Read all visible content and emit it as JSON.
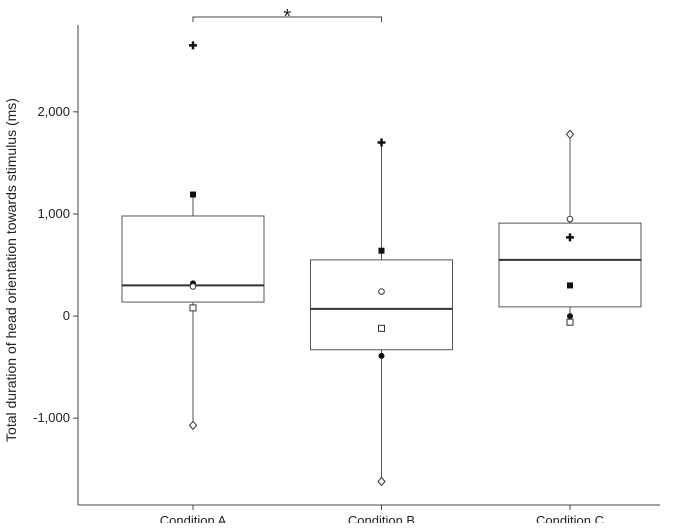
{
  "chart_data": {
    "type": "box",
    "y_label": "Total duration of head orientation towards stimulus (ms)",
    "categories": [
      "Condition A",
      "Condition B",
      "Condition C"
    ],
    "boxes": [
      {
        "whislo": -1070,
        "q1": 137,
        "med": 300,
        "q3": 980,
        "whishi": 1190
      },
      {
        "whislo": -1620,
        "q1": -330,
        "med": 70,
        "q3": 550,
        "whishi": 1700
      },
      {
        "whislo": -60,
        "q1": 90,
        "med": 550,
        "q3": 910,
        "whishi": 1780
      }
    ],
    "points": [
      {
        "marker": "plus",
        "values": [
          2650,
          1700,
          770
        ]
      },
      {
        "marker": "filled-square",
        "values": [
          1190,
          640,
          300
        ]
      },
      {
        "marker": "filled-circle",
        "values": [
          320,
          -390,
          0
        ]
      },
      {
        "marker": "open-circle",
        "values": [
          290,
          240,
          950
        ]
      },
      {
        "marker": "open-square",
        "values": [
          80,
          -120,
          -60
        ]
      },
      {
        "marker": "open-diamond",
        "values": [
          -1070,
          -1620,
          1780
        ]
      }
    ],
    "ylim": [
      -1850,
      2850
    ],
    "yticks": [
      {
        "value": -1000,
        "label": "-1,000"
      },
      0,
      {
        "value": 1000,
        "label": "1,000"
      },
      {
        "value": 2000,
        "label": "2,000"
      }
    ],
    "annotations": [
      {
        "text": "*",
        "from": 0,
        "to": 1
      }
    ]
  }
}
